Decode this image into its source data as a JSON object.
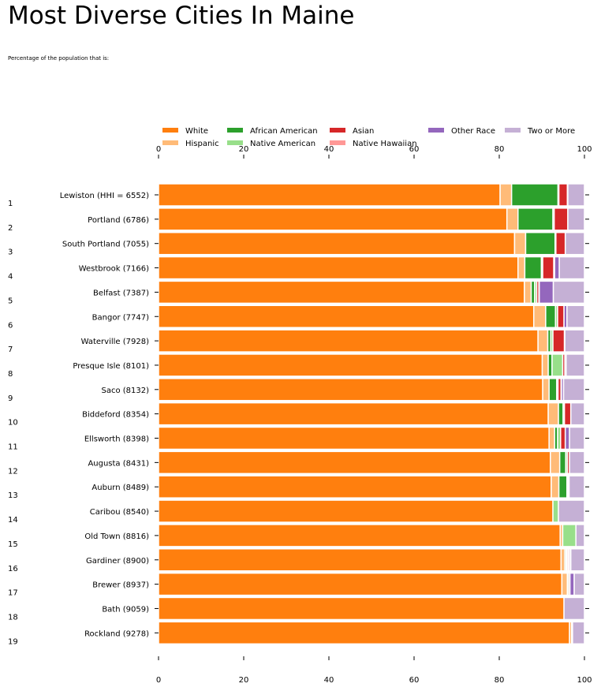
{
  "title": "Most Diverse Cities In Maine",
  "subtitle": "Percentage of the population that is:",
  "chart_data": {
    "type": "bar",
    "orientation": "horizontal",
    "stacked": true,
    "xlim": [
      0,
      100
    ],
    "x_ticks": [
      "0",
      "20",
      "40",
      "60",
      "80",
      "100"
    ],
    "legend_position": "top",
    "grid": false,
    "categories": [
      "Lewiston (HHI = 6552)",
      "Portland (6786)",
      "South Portland (7055)",
      "Westbrook (7166)",
      "Belfast (7387)",
      "Bangor (7747)",
      "Waterville (7928)",
      "Presque Isle (8101)",
      "Saco (8132)",
      "Biddeford (8354)",
      "Ellsworth (8398)",
      "Augusta (8431)",
      "Auburn (8489)",
      "Caribou (8540)",
      "Old Town (8816)",
      "Gardiner (8900)",
      "Brewer (8937)",
      "Bath (9059)",
      "Rockland (9278)"
    ],
    "rank_labels": [
      "1",
      "2",
      "3",
      "4",
      "5",
      "6",
      "7",
      "8",
      "9",
      "10",
      "11",
      "12",
      "13",
      "14",
      "15",
      "16",
      "17",
      "18",
      "19"
    ],
    "series": [
      {
        "name": "White",
        "color": "#ff7f0e",
        "values": [
          80.2,
          81.8,
          83.6,
          84.4,
          85.9,
          88.1,
          89.1,
          90.1,
          90.2,
          91.5,
          91.7,
          92.0,
          92.2,
          92.6,
          94.3,
          94.5,
          94.7,
          95.2,
          96.5
        ]
      },
      {
        "name": "Hispanic",
        "color": "#ffbb78",
        "values": [
          2.7,
          2.6,
          2.6,
          1.6,
          1.6,
          2.8,
          2.3,
          1.4,
          1.5,
          2.4,
          1.3,
          2.2,
          1.8,
          0.0,
          0.6,
          0.9,
          1.3,
          0.0,
          0.5
        ]
      },
      {
        "name": "African American",
        "color": "#2ca02c",
        "values": [
          10.9,
          8.2,
          6.9,
          3.9,
          0.8,
          2.3,
          0.7,
          0.9,
          1.8,
          1.1,
          0.7,
          1.4,
          1.9,
          0.0,
          0.0,
          0.3,
          0.0,
          0.0,
          0.0
        ]
      },
      {
        "name": "Native American",
        "color": "#98df8a",
        "values": [
          0.2,
          0.3,
          0.2,
          0.3,
          0.5,
          0.5,
          0.5,
          2.5,
          0.3,
          0.3,
          0.7,
          0.4,
          0.3,
          1.3,
          3.1,
          0.2,
          0.3,
          0.0,
          0.0
        ]
      },
      {
        "name": "Asian",
        "color": "#d62728",
        "values": [
          2.0,
          3.2,
          2.2,
          2.6,
          0.5,
          1.5,
          2.7,
          0.5,
          0.7,
          1.5,
          1.1,
          0.5,
          0.2,
          0.0,
          0.0,
          0.3,
          0.3,
          0.0,
          0.2
        ]
      },
      {
        "name": "Native Hawaiian",
        "color": "#ff9896",
        "values": [
          0.1,
          0.0,
          0.0,
          0.2,
          0.1,
          0.0,
          0.1,
          0.0,
          0.1,
          0.0,
          0.0,
          0.0,
          0.0,
          0.0,
          0.0,
          0.3,
          0.0,
          0.0,
          0.0
        ]
      },
      {
        "name": "Other Race",
        "color": "#9467bd",
        "values": [
          0.0,
          0.0,
          0.0,
          1.1,
          3.3,
          0.7,
          0.0,
          0.3,
          0.5,
          0.0,
          1.0,
          0.0,
          0.0,
          0.0,
          0.0,
          0.3,
          1.0,
          0.0,
          0.0
        ]
      },
      {
        "name": "Two or More",
        "color": "#c5b0d5",
        "values": [
          3.9,
          3.9,
          4.5,
          5.9,
          7.3,
          4.1,
          4.6,
          4.3,
          4.9,
          3.2,
          3.5,
          3.5,
          3.6,
          6.1,
          2.0,
          3.2,
          2.4,
          4.8,
          2.8
        ]
      }
    ]
  }
}
